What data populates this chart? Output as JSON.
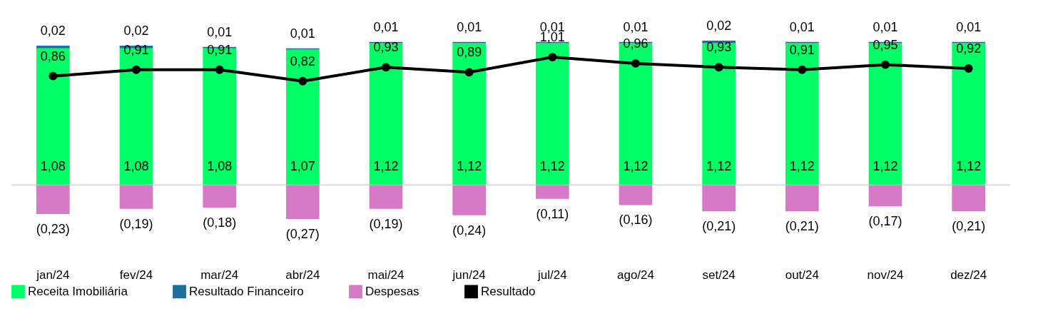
{
  "chart_data": {
    "type": "bar",
    "stacked": true,
    "legend": "bottom",
    "grid": false,
    "tick_labels": "x",
    "categories": [
      "jan/24",
      "fev/24",
      "mar/24",
      "abr/24",
      "mai/24",
      "jun/24",
      "jul/24",
      "ago/24",
      "set/24",
      "out/24",
      "nov/24",
      "dez/24"
    ],
    "series": [
      {
        "name": "Receita Imobiliária",
        "color": "#00ff66",
        "values": [
          1.08,
          1.08,
          1.08,
          1.07,
          1.12,
          1.12,
          1.12,
          1.12,
          1.12,
          1.12,
          1.12,
          1.12
        ],
        "value_labels": [
          "1,08",
          "1,08",
          "1,08",
          "1,07",
          "1,12",
          "1,12",
          "1,12",
          "1,12",
          "1,12",
          "1,12",
          "1,12",
          "1,12"
        ]
      },
      {
        "name": "Resultado Financeiro",
        "color": "#1f6f9f",
        "values": [
          0.02,
          0.02,
          0.01,
          0.01,
          0.01,
          0.01,
          0.01,
          0.01,
          0.02,
          0.01,
          0.01,
          0.01
        ],
        "value_labels": [
          "0,02",
          "0,02",
          "0,01",
          "0,01",
          "0,01",
          "0,01",
          "0,01",
          "0,01",
          "0,02",
          "0,01",
          "0,01",
          "0,01"
        ]
      },
      {
        "name": "Despesas",
        "color": "#d67ac8",
        "values": [
          -0.23,
          -0.19,
          -0.18,
          -0.27,
          -0.19,
          -0.24,
          -0.11,
          -0.16,
          -0.21,
          -0.21,
          -0.17,
          -0.21
        ],
        "value_labels": [
          "(0,23)",
          "(0,19)",
          "(0,18)",
          "(0,27)",
          "(0,19)",
          "(0,24)",
          "(0,11)",
          "(0,16)",
          "(0,21)",
          "(0,21)",
          "(0,17)",
          "(0,21)"
        ]
      },
      {
        "name": "Resultado",
        "type": "line",
        "color": "#000000",
        "marker": "circle",
        "line_style": "solid",
        "values": [
          0.86,
          0.91,
          0.91,
          0.82,
          0.93,
          0.89,
          1.01,
          0.96,
          0.93,
          0.91,
          0.95,
          0.92
        ],
        "value_labels": [
          "0,86",
          "0,91",
          "0,91",
          "0,82",
          "0,93",
          "0,89",
          "1,01",
          "0,96",
          "0,93",
          "0,91",
          "0,95",
          "0,92"
        ]
      }
    ]
  }
}
